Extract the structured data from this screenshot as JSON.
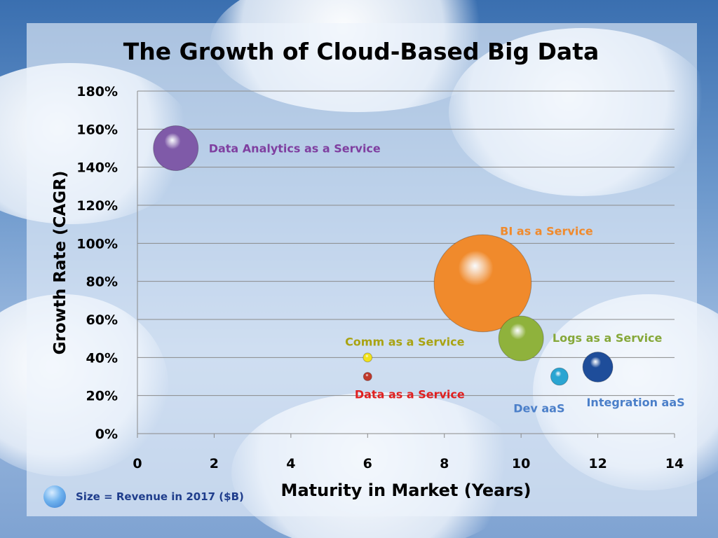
{
  "chart_data": {
    "type": "scatter",
    "title": "The Growth of Cloud-Based Big Data",
    "xlabel": "Maturity in Market (Years)",
    "ylabel": "Growth Rate (CAGR)",
    "xlim": [
      0,
      14
    ],
    "ylim": [
      0,
      180
    ],
    "x_ticks": [
      0,
      2,
      4,
      6,
      8,
      10,
      12,
      14
    ],
    "y_ticks": [
      "0%",
      "20%",
      "40%",
      "60%",
      "80%",
      "100%",
      "120%",
      "140%",
      "160%",
      "180%"
    ],
    "grid": true,
    "size_legend": "Size = Revenue in 2017 ($B)",
    "series": [
      {
        "name": "Data Analytics as a Service",
        "x": 1,
        "y": 150,
        "size": 1.0,
        "color": "#7f5aa8",
        "label_color": "#7f3fa0"
      },
      {
        "name": "BI as a Service",
        "x": 9,
        "y": 79,
        "size": 4.7,
        "color": "#f08a2c",
        "label_color": "#f08a2c"
      },
      {
        "name": "Logs as a Service",
        "x": 10,
        "y": 50,
        "size": 1.0,
        "color": "#8fb23c",
        "label_color": "#86a83a"
      },
      {
        "name": "Comm as a Service",
        "x": 6,
        "y": 40,
        "size": 0.04,
        "color": "#f2e21a",
        "label_color": "#a9a313"
      },
      {
        "name": "Data as a Service",
        "x": 6,
        "y": 30,
        "size": 0.02,
        "color": "#c0392b",
        "label_color": "#e02020"
      },
      {
        "name": "Dev aaS",
        "x": 11,
        "y": 30,
        "size": 0.15,
        "color": "#2aa5d2",
        "label_color": "#4b7fc9"
      },
      {
        "name": "Integration aaS",
        "x": 12,
        "y": 35,
        "size": 0.45,
        "color": "#1e4d9a",
        "label_color": "#4b7fc9"
      }
    ]
  }
}
